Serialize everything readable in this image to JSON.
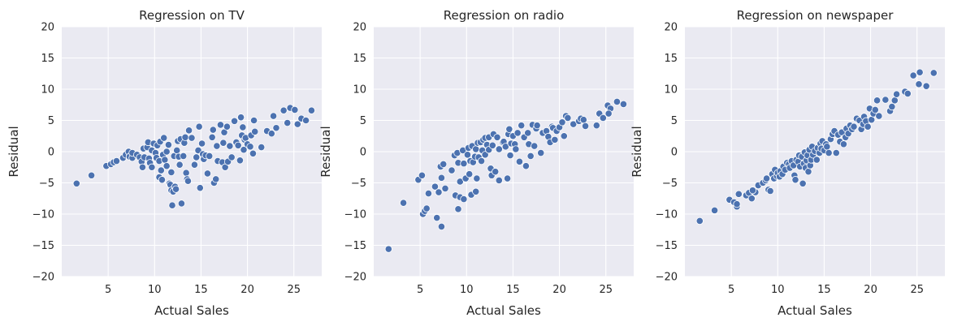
{
  "chart_data": [
    {
      "type": "scatter",
      "title": "Regression on TV",
      "xlabel": "Actual Sales",
      "ylabel": "Residual",
      "xlim": [
        0,
        28
      ],
      "ylim": [
        -20,
        20
      ],
      "xticks": [
        5,
        10,
        15,
        20,
        25
      ],
      "yticks": [
        -20,
        -15,
        -10,
        -5,
        0,
        5,
        10,
        15,
        20
      ],
      "xtick_labels": [
        "5",
        "10",
        "15",
        "20",
        "25"
      ],
      "ytick_labels": [
        "−20",
        "−15",
        "−10",
        "−5",
        "0",
        "5",
        "10",
        "15",
        "20"
      ],
      "grid": true,
      "color": "#4c72b0",
      "background": "#eaeaf2",
      "points": [
        [
          1.6,
          -5.1
        ],
        [
          3.2,
          -3.8
        ],
        [
          4.8,
          -2.3
        ],
        [
          5.3,
          -2.0
        ],
        [
          5.6,
          -1.7
        ],
        [
          5.9,
          -1.5
        ],
        [
          6.6,
          -1.0
        ],
        [
          6.9,
          -0.5
        ],
        [
          7.2,
          0.0
        ],
        [
          7.3,
          -0.8
        ],
        [
          7.6,
          -1.0
        ],
        [
          7.6,
          -0.2
        ],
        [
          8.1,
          -0.5
        ],
        [
          8.4,
          -0.9
        ],
        [
          8.6,
          -1.6
        ],
        [
          8.7,
          -2.5
        ],
        [
          8.8,
          0.5
        ],
        [
          8.9,
          -0.9
        ],
        [
          9.2,
          0.7
        ],
        [
          9.3,
          1.5
        ],
        [
          9.4,
          -1.1
        ],
        [
          9.5,
          -1.8
        ],
        [
          9.7,
          0.2
        ],
        [
          9.7,
          -2.5
        ],
        [
          9.9,
          1.3
        ],
        [
          10.1,
          -0.2
        ],
        [
          10.2,
          -1.0
        ],
        [
          10.3,
          1.0
        ],
        [
          10.5,
          -1.5
        ],
        [
          10.5,
          -4.1
        ],
        [
          10.6,
          1.6
        ],
        [
          10.7,
          -3.0
        ],
        [
          10.8,
          -4.5
        ],
        [
          10.9,
          -0.5
        ],
        [
          11.0,
          2.2
        ],
        [
          11.1,
          -1.3
        ],
        [
          11.3,
          0.0
        ],
        [
          11.3,
          -2.3
        ],
        [
          11.5,
          1.1
        ],
        [
          11.6,
          -5.1
        ],
        [
          11.7,
          -5.3
        ],
        [
          11.8,
          -6.2
        ],
        [
          11.8,
          -3.3
        ],
        [
          11.9,
          -8.6
        ],
        [
          12.0,
          -6.4
        ],
        [
          12.1,
          -0.7
        ],
        [
          12.2,
          -5.6
        ],
        [
          12.3,
          -6.0
        ],
        [
          12.4,
          0.2
        ],
        [
          12.5,
          1.7
        ],
        [
          12.6,
          -0.8
        ],
        [
          12.7,
          -2.1
        ],
        [
          12.8,
          2.0
        ],
        [
          12.9,
          -8.3
        ],
        [
          13.1,
          -0.7
        ],
        [
          13.2,
          1.4
        ],
        [
          13.3,
          2.3
        ],
        [
          13.4,
          -3.4
        ],
        [
          13.5,
          -4.4
        ],
        [
          13.6,
          -4.7
        ],
        [
          13.7,
          3.4
        ],
        [
          14.0,
          2.2
        ],
        [
          14.3,
          -2.1
        ],
        [
          14.5,
          -0.9
        ],
        [
          14.7,
          0.2
        ],
        [
          14.8,
          4.0
        ],
        [
          14.9,
          -5.8
        ],
        [
          15.1,
          1.3
        ],
        [
          15.2,
          -0.4
        ],
        [
          15.3,
          -1.2
        ],
        [
          15.5,
          -0.6
        ],
        [
          15.7,
          -3.5
        ],
        [
          15.9,
          -0.7
        ],
        [
          16.2,
          2.3
        ],
        [
          16.3,
          3.5
        ],
        [
          16.4,
          -5.0
        ],
        [
          16.6,
          -4.4
        ],
        [
          16.7,
          0.9
        ],
        [
          16.8,
          -1.5
        ],
        [
          17.1,
          4.3
        ],
        [
          17.3,
          -1.7
        ],
        [
          17.4,
          1.4
        ],
        [
          17.5,
          3.1
        ],
        [
          17.6,
          -2.5
        ],
        [
          17.8,
          4.0
        ],
        [
          17.9,
          -1.6
        ],
        [
          18.1,
          0.9
        ],
        [
          18.3,
          -0.9
        ],
        [
          18.6,
          4.9
        ],
        [
          18.8,
          1.5
        ],
        [
          19.0,
          1.0
        ],
        [
          19.2,
          -1.4
        ],
        [
          19.3,
          5.5
        ],
        [
          19.4,
          2.6
        ],
        [
          19.5,
          3.9
        ],
        [
          19.6,
          0.3
        ],
        [
          19.7,
          1.9
        ],
        [
          19.8,
          2.2
        ],
        [
          20.0,
          1.2
        ],
        [
          20.3,
          0.8
        ],
        [
          20.4,
          2.6
        ],
        [
          20.6,
          -0.3
        ],
        [
          20.7,
          5.0
        ],
        [
          20.8,
          3.2
        ],
        [
          21.5,
          0.7
        ],
        [
          22.1,
          3.3
        ],
        [
          22.6,
          2.9
        ],
        [
          22.8,
          5.7
        ],
        [
          23.1,
          3.8
        ],
        [
          23.9,
          6.6
        ],
        [
          24.3,
          4.6
        ],
        [
          24.6,
          7.0
        ],
        [
          25.1,
          6.7
        ],
        [
          25.4,
          4.4
        ],
        [
          25.8,
          5.3
        ],
        [
          26.3,
          5.0
        ],
        [
          26.9,
          6.6
        ]
      ]
    },
    {
      "type": "scatter",
      "title": "Regression on radio",
      "xlabel": "Actual Sales",
      "ylabel": "Residual",
      "xlim": [
        0,
        28
      ],
      "ylim": [
        -20,
        20
      ],
      "xticks": [
        5,
        10,
        15,
        20,
        25
      ],
      "yticks": [
        -20,
        -15,
        -10,
        -5,
        0,
        5,
        10,
        15,
        20
      ],
      "xtick_labels": [
        "5",
        "10",
        "15",
        "20",
        "25"
      ],
      "ytick_labels": [
        "−20",
        "−15",
        "−10",
        "−5",
        "0",
        "5",
        "10",
        "15",
        "20"
      ],
      "grid": true,
      "color": "#4c72b0",
      "background": "#eaeaf2",
      "points": [
        [
          1.6,
          -15.6
        ],
        [
          3.2,
          -8.2
        ],
        [
          4.8,
          -4.5
        ],
        [
          5.2,
          -3.8
        ],
        [
          5.3,
          -10.0
        ],
        [
          5.5,
          -9.5
        ],
        [
          5.7,
          -9.1
        ],
        [
          5.9,
          -6.7
        ],
        [
          6.6,
          -5.6
        ],
        [
          6.8,
          -10.6
        ],
        [
          7.0,
          -6.5
        ],
        [
          7.2,
          -2.4
        ],
        [
          7.3,
          -4.2
        ],
        [
          7.5,
          -2.0
        ],
        [
          7.3,
          -12.0
        ],
        [
          7.7,
          -5.9
        ],
        [
          8.4,
          -3.0
        ],
        [
          8.7,
          -0.6
        ],
        [
          8.8,
          -7.0
        ],
        [
          9.0,
          -0.2
        ],
        [
          9.1,
          -1.8
        ],
        [
          9.1,
          -9.2
        ],
        [
          9.3,
          -7.3
        ],
        [
          9.3,
          -4.8
        ],
        [
          9.6,
          0.2
        ],
        [
          9.7,
          -7.6
        ],
        [
          9.7,
          -1.9
        ],
        [
          9.9,
          -4.3
        ],
        [
          10.1,
          -0.5
        ],
        [
          10.2,
          0.6
        ],
        [
          10.3,
          -3.6
        ],
        [
          10.4,
          -1.5
        ],
        [
          10.5,
          -6.9
        ],
        [
          10.6,
          0.9
        ],
        [
          10.7,
          -1.7
        ],
        [
          10.9,
          -0.8
        ],
        [
          11.0,
          -6.4
        ],
        [
          11.0,
          0.4
        ],
        [
          11.1,
          -4.3
        ],
        [
          11.2,
          1.4
        ],
        [
          11.3,
          -0.9
        ],
        [
          11.5,
          1.5
        ],
        [
          11.6,
          -1.5
        ],
        [
          11.7,
          0.2
        ],
        [
          11.8,
          1.9
        ],
        [
          12.0,
          -0.5
        ],
        [
          12.0,
          2.2
        ],
        [
          12.2,
          1.1
        ],
        [
          12.4,
          2.3
        ],
        [
          12.4,
          0.3
        ],
        [
          12.6,
          -2.7
        ],
        [
          12.7,
          -3.8
        ],
        [
          12.8,
          1.0
        ],
        [
          12.9,
          2.8
        ],
        [
          13.1,
          -3.2
        ],
        [
          13.3,
          2.3
        ],
        [
          13.5,
          0.4
        ],
        [
          13.5,
          -4.6
        ],
        [
          13.9,
          1.5
        ],
        [
          14.0,
          1.6
        ],
        [
          14.2,
          0.8
        ],
        [
          14.4,
          -4.3
        ],
        [
          14.5,
          2.8
        ],
        [
          14.6,
          3.6
        ],
        [
          14.7,
          -0.6
        ],
        [
          14.8,
          1.3
        ],
        [
          15.0,
          2.5
        ],
        [
          15.2,
          1.2
        ],
        [
          15.3,
          0.4
        ],
        [
          15.5,
          3.0
        ],
        [
          15.7,
          -1.6
        ],
        [
          15.9,
          4.2
        ],
        [
          16.2,
          2.3
        ],
        [
          16.4,
          -2.3
        ],
        [
          16.6,
          3.0
        ],
        [
          16.7,
          1.2
        ],
        [
          16.9,
          -0.7
        ],
        [
          17.1,
          4.3
        ],
        [
          17.3,
          0.9
        ],
        [
          17.5,
          3.7
        ],
        [
          17.6,
          4.2
        ],
        [
          18.0,
          -0.2
        ],
        [
          18.2,
          3.0
        ],
        [
          18.6,
          3.3
        ],
        [
          18.8,
          2.4
        ],
        [
          19.0,
          1.5
        ],
        [
          19.2,
          4.0
        ],
        [
          19.3,
          3.8
        ],
        [
          19.5,
          1.9
        ],
        [
          19.7,
          3.3
        ],
        [
          20.0,
          3.9
        ],
        [
          20.3,
          4.7
        ],
        [
          20.5,
          2.5
        ],
        [
          20.7,
          5.7
        ],
        [
          20.9,
          5.4
        ],
        [
          21.5,
          4.4
        ],
        [
          22.1,
          4.9
        ],
        [
          22.3,
          5.3
        ],
        [
          22.6,
          5.1
        ],
        [
          22.8,
          4.1
        ],
        [
          24.0,
          4.2
        ],
        [
          24.3,
          6.1
        ],
        [
          24.7,
          5.4
        ],
        [
          25.2,
          7.4
        ],
        [
          25.5,
          6.9
        ],
        [
          25.3,
          6.1
        ],
        [
          26.2,
          8.0
        ],
        [
          26.9,
          7.6
        ]
      ]
    },
    {
      "type": "scatter",
      "title": "Regression on newspaper",
      "xlabel": "Actual Sales",
      "ylabel": "Residual",
      "xlim": [
        0,
        28
      ],
      "ylim": [
        -20,
        20
      ],
      "xticks": [
        5,
        10,
        15,
        20,
        25
      ],
      "yticks": [
        -20,
        -15,
        -10,
        -5,
        0,
        5,
        10,
        15,
        20
      ],
      "xtick_labels": [
        "5",
        "10",
        "15",
        "20",
        "25"
      ],
      "ytick_labels": [
        "−20",
        "−15",
        "−10",
        "−5",
        "0",
        "5",
        "10",
        "15",
        "20"
      ],
      "grid": true,
      "color": "#4c72b0",
      "background": "#eaeaf2",
      "points": [
        [
          1.6,
          -11.1
        ],
        [
          3.2,
          -9.4
        ],
        [
          4.8,
          -7.7
        ],
        [
          5.3,
          -8.1
        ],
        [
          5.6,
          -8.8
        ],
        [
          5.6,
          -8.4
        ],
        [
          5.8,
          -6.8
        ],
        [
          6.6,
          -7.0
        ],
        [
          6.9,
          -6.6
        ],
        [
          7.2,
          -7.5
        ],
        [
          7.6,
          -6.5
        ],
        [
          7.3,
          -6.2
        ],
        [
          7.9,
          -5.4
        ],
        [
          8.4,
          -5.0
        ],
        [
          8.7,
          -4.6
        ],
        [
          8.8,
          -4.3
        ],
        [
          9.0,
          -6.1
        ],
        [
          9.2,
          -6.3
        ],
        [
          9.4,
          -3.6
        ],
        [
          9.6,
          -4.3
        ],
        [
          9.7,
          -2.9
        ],
        [
          9.9,
          -3.9
        ],
        [
          10.0,
          -3.4
        ],
        [
          10.2,
          -4.0
        ],
        [
          10.3,
          -3.1
        ],
        [
          10.5,
          -3.6
        ],
        [
          10.6,
          -2.4
        ],
        [
          10.8,
          -2.9
        ],
        [
          11.0,
          -1.8
        ],
        [
          11.2,
          -2.0
        ],
        [
          11.3,
          -2.6
        ],
        [
          11.5,
          -1.5
        ],
        [
          11.7,
          -2.2
        ],
        [
          11.8,
          -3.8
        ],
        [
          11.9,
          -4.5
        ],
        [
          12.0,
          -1.3
        ],
        [
          12.2,
          -1.6
        ],
        [
          12.3,
          -0.6
        ],
        [
          12.4,
          -2.4
        ],
        [
          12.6,
          -0.8
        ],
        [
          12.7,
          -5.1
        ],
        [
          12.8,
          -1.9
        ],
        [
          12.9,
          -0.1
        ],
        [
          13.0,
          -2.6
        ],
        [
          13.1,
          -1.4
        ],
        [
          13.2,
          -0.6
        ],
        [
          13.3,
          -3.2
        ],
        [
          13.4,
          0.3
        ],
        [
          13.5,
          -2.2
        ],
        [
          13.6,
          -1.3
        ],
        [
          13.7,
          0.8
        ],
        [
          13.8,
          -0.5
        ],
        [
          14.0,
          0.1
        ],
        [
          14.2,
          -1.3
        ],
        [
          14.3,
          0.6
        ],
        [
          14.5,
          -0.2
        ],
        [
          14.6,
          1.3
        ],
        [
          14.7,
          0.5
        ],
        [
          14.8,
          1.7
        ],
        [
          15.0,
          0.2
        ],
        [
          15.2,
          1.2
        ],
        [
          15.3,
          0.8
        ],
        [
          15.5,
          -0.2
        ],
        [
          15.7,
          2.0
        ],
        [
          15.9,
          2.8
        ],
        [
          16.1,
          3.3
        ],
        [
          16.3,
          -0.2
        ],
        [
          16.5,
          2.7
        ],
        [
          16.7,
          1.6
        ],
        [
          16.9,
          3.1
        ],
        [
          17.1,
          1.2
        ],
        [
          17.3,
          2.3
        ],
        [
          17.4,
          3.7
        ],
        [
          17.6,
          2.9
        ],
        [
          17.8,
          4.2
        ],
        [
          18.0,
          3.6
        ],
        [
          18.2,
          4.0
        ],
        [
          18.5,
          5.3
        ],
        [
          18.8,
          5.0
        ],
        [
          19.0,
          3.6
        ],
        [
          19.2,
          4.4
        ],
        [
          19.3,
          5.6
        ],
        [
          19.5,
          4.9
        ],
        [
          19.7,
          4.0
        ],
        [
          19.9,
          6.9
        ],
        [
          20.1,
          5.1
        ],
        [
          20.3,
          6.1
        ],
        [
          20.5,
          6.7
        ],
        [
          20.7,
          8.2
        ],
        [
          20.9,
          5.7
        ],
        [
          21.6,
          8.3
        ],
        [
          22.1,
          6.5
        ],
        [
          22.3,
          7.2
        ],
        [
          22.6,
          8.2
        ],
        [
          22.8,
          9.2
        ],
        [
          23.7,
          9.6
        ],
        [
          24.0,
          9.3
        ],
        [
          24.6,
          12.2
        ],
        [
          25.2,
          10.8
        ],
        [
          25.3,
          12.7
        ],
        [
          26.0,
          10.5
        ],
        [
          26.8,
          12.6
        ]
      ]
    }
  ]
}
